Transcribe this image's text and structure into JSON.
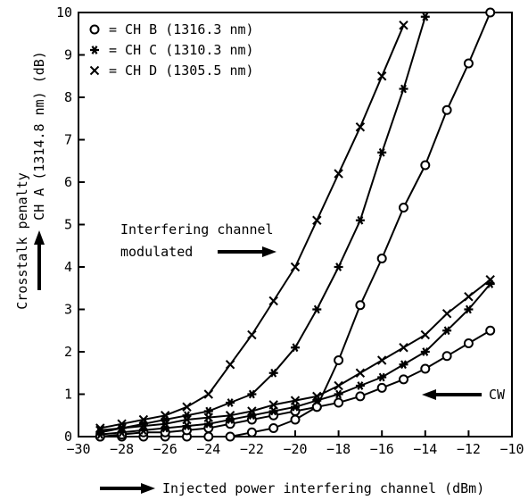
{
  "chart_data": {
    "type": "line",
    "xlabel": "Injected power interfering channel (dBm)",
    "ylabel_line1": "Crosstalk penalty",
    "ylabel_line2": "CH A (1314.8 nm) (dB)",
    "xlim": [
      -30,
      -10
    ],
    "ylim": [
      0,
      10
    ],
    "x_ticks": [
      -30,
      -28,
      -26,
      -24,
      -22,
      -20,
      -18,
      -16,
      -14,
      -12,
      -10
    ],
    "y_ticks": [
      0,
      1,
      2,
      3,
      4,
      5,
      6,
      7,
      8,
      9,
      10
    ],
    "grid": false,
    "legend_position": "top-left",
    "annotations": {
      "modulated_line1": "Interfering channel",
      "modulated_line2": "modulated",
      "cw": "CW"
    },
    "series": [
      {
        "name": "= CH B (1316.3 nm)",
        "marker": "circle",
        "condition": "modulated",
        "x": [
          -29,
          -28,
          -27,
          -26,
          -25,
          -24,
          -23,
          -22,
          -21,
          -20,
          -19,
          -18,
          -17,
          -16,
          -15,
          -14,
          -13,
          -12,
          -11
        ],
        "y": [
          0.0,
          0.0,
          0.0,
          0.0,
          0.0,
          0.0,
          0.0,
          0.1,
          0.2,
          0.4,
          0.7,
          1.8,
          3.1,
          4.2,
          5.4,
          6.4,
          7.7,
          8.8,
          10.0
        ]
      },
      {
        "name": "= CH C (1310.3 nm)",
        "marker": "asterisk",
        "condition": "modulated",
        "x": [
          -29,
          -28,
          -27,
          -26,
          -25,
          -24,
          -23,
          -22,
          -21,
          -20,
          -19,
          -18,
          -17,
          -16,
          -15,
          -14
        ],
        "y": [
          0.1,
          0.2,
          0.3,
          0.4,
          0.5,
          0.6,
          0.8,
          1.0,
          1.5,
          2.1,
          3.0,
          4.0,
          5.1,
          6.7,
          8.2,
          9.9
        ]
      },
      {
        "name": "= CH D (1305.5 nm)",
        "marker": "x",
        "condition": "modulated",
        "x": [
          -29,
          -28,
          -27,
          -26,
          -25,
          -24,
          -23,
          -22,
          -21,
          -20,
          -19,
          -18,
          -17,
          -16,
          -15
        ],
        "y": [
          0.2,
          0.3,
          0.4,
          0.5,
          0.7,
          1.0,
          1.7,
          2.4,
          3.2,
          4.0,
          5.1,
          6.2,
          7.3,
          8.5,
          9.7
        ]
      },
      {
        "marker": "circle",
        "condition": "cw",
        "x": [
          -29,
          -28,
          -27,
          -26,
          -25,
          -24,
          -23,
          -22,
          -21,
          -20,
          -19,
          -18,
          -17,
          -16,
          -15,
          -14,
          -13,
          -12,
          -11
        ],
        "y": [
          0.0,
          0.05,
          0.1,
          0.1,
          0.15,
          0.2,
          0.3,
          0.4,
          0.5,
          0.6,
          0.7,
          0.8,
          0.95,
          1.15,
          1.35,
          1.6,
          1.9,
          2.2,
          2.5
        ]
      },
      {
        "marker": "asterisk",
        "condition": "cw",
        "x": [
          -29,
          -28,
          -27,
          -26,
          -25,
          -24,
          -23,
          -22,
          -21,
          -20,
          -19,
          -18,
          -17,
          -16,
          -15,
          -14,
          -13,
          -12,
          -11
        ],
        "y": [
          0.05,
          0.1,
          0.15,
          0.2,
          0.25,
          0.3,
          0.4,
          0.5,
          0.6,
          0.7,
          0.85,
          1.0,
          1.2,
          1.4,
          1.7,
          2.0,
          2.5,
          3.0,
          3.6
        ]
      },
      {
        "marker": "x",
        "condition": "cw",
        "x": [
          -29,
          -28,
          -27,
          -26,
          -25,
          -24,
          -23,
          -22,
          -21,
          -20,
          -19,
          -18,
          -17,
          -16,
          -15,
          -14,
          -13,
          -12,
          -11
        ],
        "y": [
          0.15,
          0.2,
          0.25,
          0.3,
          0.4,
          0.45,
          0.5,
          0.6,
          0.75,
          0.85,
          0.95,
          1.2,
          1.5,
          1.8,
          2.1,
          2.4,
          2.9,
          3.3,
          3.7
        ]
      }
    ]
  }
}
